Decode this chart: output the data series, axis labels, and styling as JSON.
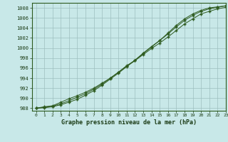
{
  "xlabel": "Graphe pression niveau de la mer (hPa)",
  "bg_color": "#c8e8e8",
  "grid_color": "#9dbfbf",
  "line_color": "#2d5a1e",
  "xlim": [
    -0.5,
    23
  ],
  "ylim": [
    987.5,
    1009
  ],
  "yticks": [
    988,
    990,
    992,
    994,
    996,
    998,
    1000,
    1002,
    1004,
    1006,
    1008
  ],
  "xticks": [
    0,
    1,
    2,
    3,
    4,
    5,
    6,
    7,
    8,
    9,
    10,
    11,
    12,
    13,
    14,
    15,
    16,
    17,
    18,
    19,
    20,
    21,
    22,
    23
  ],
  "series1": [
    988.0,
    988.3,
    988.5,
    989.2,
    989.9,
    990.5,
    991.2,
    992.0,
    993.0,
    994.0,
    995.2,
    996.5,
    997.5,
    998.7,
    999.9,
    1001.0,
    1002.2,
    1003.5,
    1004.8,
    1005.8,
    1006.8,
    1007.3,
    1007.8,
    1008.1
  ],
  "series2": [
    988.0,
    988.2,
    988.4,
    988.9,
    989.5,
    990.2,
    990.9,
    991.8,
    992.8,
    994.0,
    995.2,
    996.4,
    997.6,
    999.0,
    1000.3,
    1001.5,
    1002.8,
    1004.2,
    1005.5,
    1006.5,
    1007.3,
    1007.8,
    1008.1,
    1008.4
  ],
  "series3": [
    988.0,
    988.1,
    988.3,
    988.7,
    989.2,
    989.8,
    990.6,
    991.5,
    992.6,
    993.8,
    995.0,
    996.3,
    997.5,
    998.9,
    1000.2,
    1001.5,
    1003.0,
    1004.5,
    1005.8,
    1006.8,
    1007.5,
    1008.0,
    1008.2,
    1008.4
  ]
}
